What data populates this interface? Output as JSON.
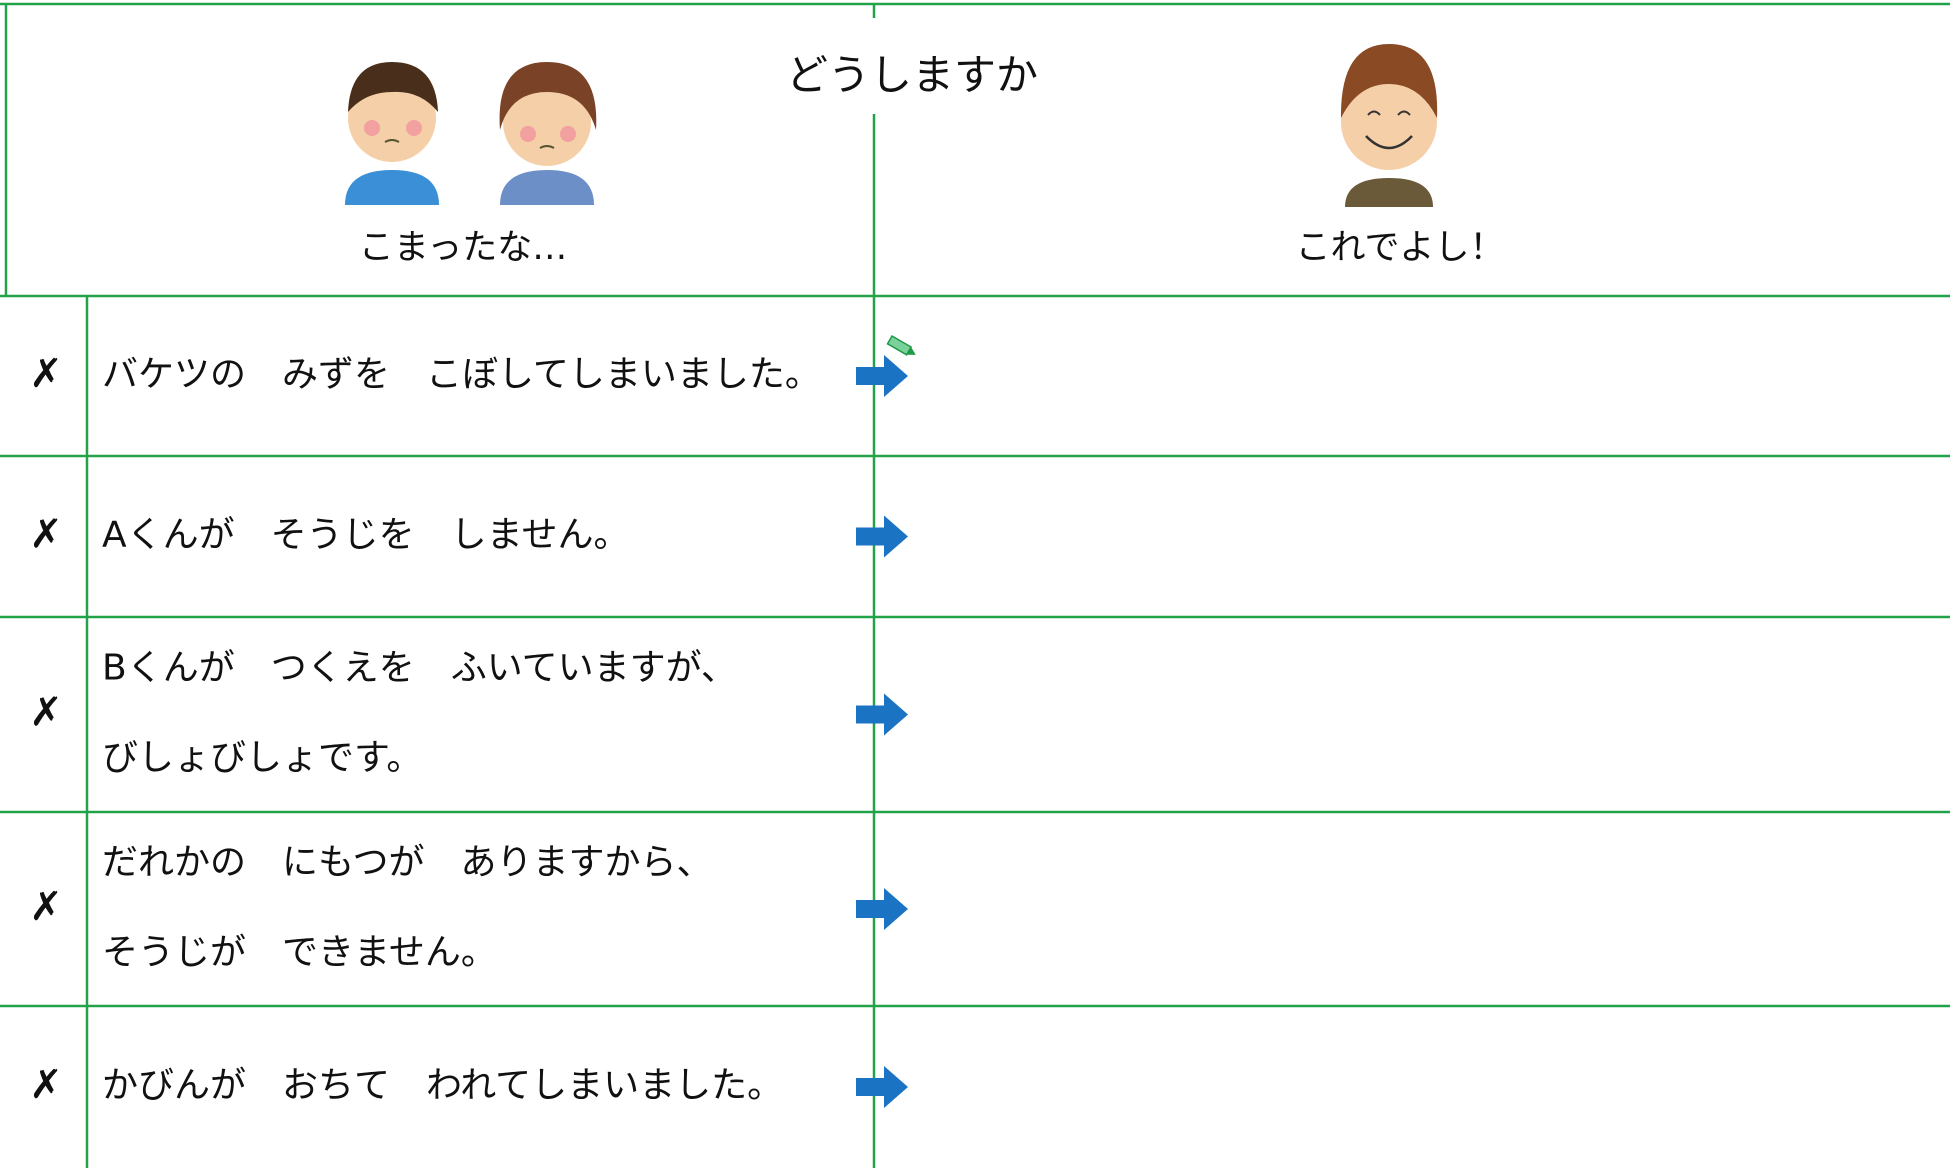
{
  "header": {
    "title": "どうしますか",
    "left_label": "こまったな…",
    "right_label": "これでよし！"
  },
  "rows": [
    {
      "mark": "✗",
      "lines": [
        "バケツの　みずを　こぼしてしまいました。"
      ]
    },
    {
      "mark": "✗",
      "lines": [
        "Aくんが　そうじを　しません。"
      ]
    },
    {
      "mark": "✗",
      "lines": [
        "Bくんが　つくえを　ふいていますが、",
        "びしょびしょです。"
      ]
    },
    {
      "mark": "✗",
      "lines": [
        "だれかの　にもつが　ありますから、",
        "そうじが　できません。"
      ]
    },
    {
      "mark": "✗",
      "lines": [
        "かびんが　おちて　われてしまいました。"
      ]
    }
  ]
}
